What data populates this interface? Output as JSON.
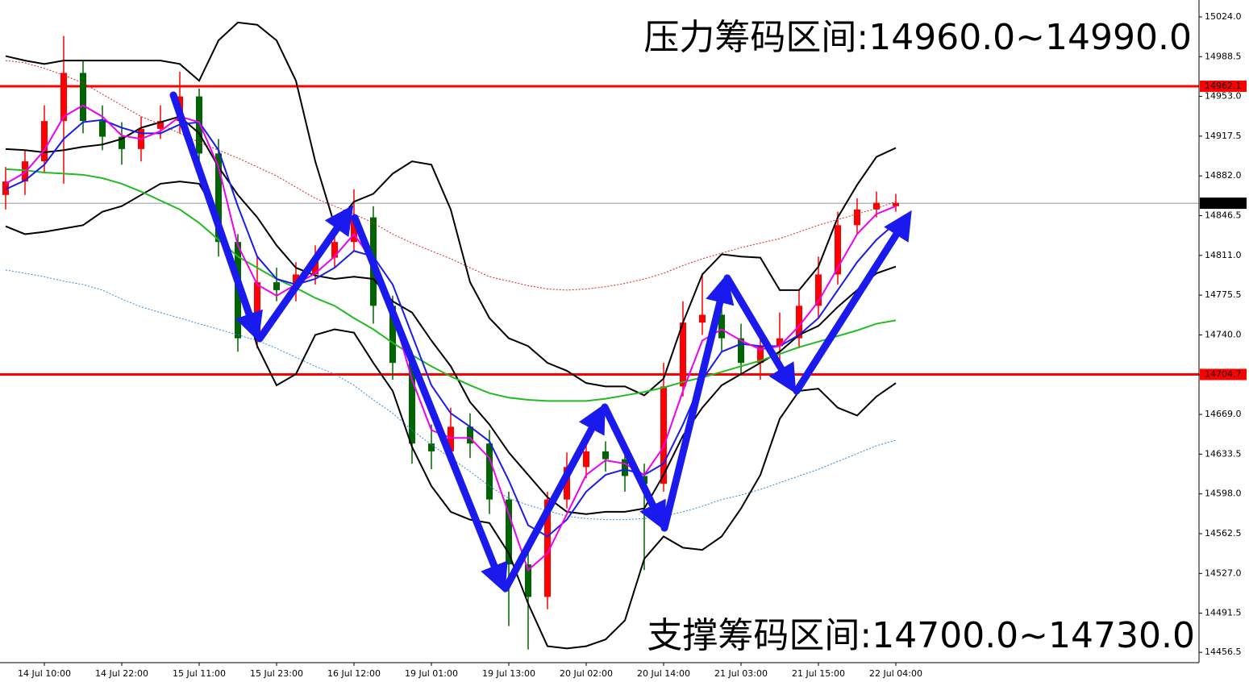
{
  "chart_data": {
    "type": "candlestick",
    "categories": [
      null,
      null,
      "14 Jul 10:00",
      null,
      null,
      null,
      "14 Jul 22:00",
      null,
      null,
      null,
      "15 Jul 11:00",
      null,
      null,
      null,
      "15 Jul 23:00",
      null,
      null,
      null,
      "16 Jul 12:00",
      null,
      null,
      null,
      "19 Jul 01:00",
      null,
      null,
      null,
      "19 Jul 13:00",
      null,
      null,
      null,
      "20 Jul 02:00",
      null,
      null,
      null,
      "20 Jul 14:00",
      null,
      null,
      null,
      "21 Jul 03:00",
      null,
      null,
      null,
      "21 Jul 15:00",
      null,
      null,
      null,
      "22 Jul 04:00"
    ],
    "open": [
      14865,
      14877,
      14895,
      14931,
      14974,
      14931,
      14917,
      14906,
      14924,
      14931,
      14953,
      14902,
      14823,
      14737,
      14787,
      14780,
      14794,
      14809,
      14823,
      14845,
      14766,
      14715,
      14643,
      14636,
      14658,
      14643,
      14593,
      14535,
      14506,
      14593,
      14622,
      14636,
      14629,
      14614,
      14607,
      14694,
      14751,
      14758,
      14737,
      14715,
      14730,
      14737,
      14766,
      14794,
      14838,
      14852,
      14855
    ],
    "high": [
      14890,
      14905,
      14945,
      15007,
      14985,
      14945,
      14930,
      14935,
      14945,
      14975,
      14960,
      14915,
      14830,
      14810,
      14800,
      14805,
      14820,
      14835,
      14870,
      14855,
      14775,
      14725,
      14660,
      14675,
      14670,
      14655,
      14600,
      14550,
      14600,
      14635,
      14650,
      14645,
      14640,
      14625,
      14715,
      14770,
      14795,
      14770,
      14750,
      14745,
      14760,
      14780,
      14810,
      14850,
      14862,
      14868,
      14866
    ],
    "low": [
      14852,
      14865,
      14885,
      14875,
      14920,
      14905,
      14892,
      14895,
      14915,
      14920,
      14890,
      14810,
      14725,
      14728,
      14770,
      14770,
      14785,
      14800,
      14815,
      14750,
      14700,
      14625,
      14620,
      14625,
      14630,
      14580,
      14480,
      14459,
      14495,
      14585,
      14612,
      14618,
      14600,
      14530,
      14600,
      14685,
      14740,
      14725,
      14705,
      14700,
      14700,
      14728,
      14755,
      14785,
      14830,
      14845,
      14850
    ],
    "close": [
      14877,
      14895,
      14931,
      14974,
      14931,
      14917,
      14906,
      14924,
      14931,
      14953,
      14902,
      14823,
      14737,
      14787,
      14780,
      14794,
      14809,
      14823,
      14845,
      14766,
      14715,
      14643,
      14636,
      14658,
      14643,
      14593,
      14535,
      14506,
      14593,
      14622,
      14636,
      14629,
      14614,
      14607,
      14694,
      14751,
      14758,
      14737,
      14715,
      14730,
      14737,
      14766,
      14794,
      14838,
      14852,
      14858,
      14858
    ],
    "up_color": "#ff0000",
    "down_color": "#006400",
    "series": [
      {
        "color": "#000000",
        "style": "solid",
        "values": [
          14989,
          14985,
          14982,
          14985,
          14985,
          14985,
          14985,
          14985,
          14985,
          14982,
          14967,
          15003,
          15019,
          15017,
          15003,
          14967,
          14895,
          14838,
          14859,
          14866,
          14884,
          14895,
          14892,
          14852,
          14787,
          14755,
          14737,
          14730,
          14715,
          14708,
          14697,
          14694,
          14694,
          14686,
          14701,
          14751,
          14794,
          14812,
          14810,
          14809,
          14780,
          14780,
          14801,
          14845,
          14874,
          14899,
          14907
        ]
      },
      {
        "color": "#000000",
        "style": "solid",
        "values": [
          14906,
          14905,
          14903,
          14905,
          14908,
          14910,
          14915,
          14925,
          14930,
          14935,
          14920,
          14890,
          14865,
          14845,
          14820,
          14800,
          14793,
          14790,
          14792,
          14790,
          14770,
          14760,
          14735,
          14712,
          14680,
          14660,
          14635,
          14615,
          14595,
          14582,
          14580,
          14582,
          14582,
          14585,
          14615,
          14650,
          14675,
          14695,
          14705,
          14715,
          14725,
          14740,
          14748,
          14765,
          14780,
          14795,
          14801
        ]
      },
      {
        "color": "#000000",
        "style": "solid",
        "values": [
          14837,
          14830,
          14832,
          14835,
          14838,
          14850,
          14855,
          14865,
          14875,
          14877,
          14875,
          14845,
          14790,
          14730,
          14695,
          14705,
          14740,
          14745,
          14742,
          14715,
          14690,
          14640,
          14605,
          14582,
          14575,
          14572,
          14545,
          14500,
          14462,
          14460,
          14462,
          14468,
          14485,
          14540,
          14560,
          14550,
          14548,
          14560,
          14585,
          14615,
          14665,
          14690,
          14692,
          14675,
          14668,
          14685,
          14697
        ]
      },
      {
        "color": "#22bb22",
        "style": "solid",
        "values": [
          14888,
          14887,
          14885,
          14884,
          14883,
          14880,
          14875,
          14868,
          14860,
          14852,
          14840,
          14825,
          14810,
          14800,
          14790,
          14782,
          14773,
          14766,
          14755,
          14745,
          14733,
          14722,
          14712,
          14703,
          14695,
          14688,
          14684,
          14682,
          14681,
          14681,
          14681,
          14683,
          14686,
          14689,
          14693,
          14698,
          14702,
          14707,
          14712,
          14717,
          14723,
          14729,
          14734,
          14739,
          14744,
          14750,
          14753
        ]
      },
      {
        "color": "#dd2222",
        "style": "dotted",
        "values": [
          14985,
          14983,
          14978,
          14972,
          14965,
          14955,
          14945,
          14935,
          14928,
          14920,
          14912,
          14905,
          14898,
          14890,
          14882,
          14872,
          14862,
          14855,
          14848,
          14840,
          14830,
          14822,
          14815,
          14808,
          14800,
          14792,
          14788,
          14784,
          14781,
          14780,
          14781,
          14783,
          14786,
          14790,
          14795,
          14802,
          14808,
          14813,
          14818,
          14822,
          14826,
          14832,
          14838,
          14843,
          14848,
          14853,
          14859
        ]
      },
      {
        "color": "#2a8adf",
        "style": "dotted",
        "values": [
          14798,
          14795,
          14792,
          14788,
          14785,
          14780,
          14772,
          14765,
          14760,
          14755,
          14750,
          14745,
          14740,
          14735,
          14728,
          14720,
          14712,
          14705,
          14695,
          14682,
          14670,
          14655,
          14642,
          14630,
          14618,
          14605,
          14594,
          14588,
          14583,
          14578,
          14576,
          14575,
          14575,
          14576,
          14578,
          14582,
          14587,
          14593,
          14597,
          14602,
          14608,
          14614,
          14620,
          14627,
          14634,
          14641,
          14646
        ]
      },
      {
        "color": "#1a1aee",
        "style": "solid",
        "values": [
          14870,
          14878,
          14892,
          14915,
          14930,
          14932,
          14925,
          14920,
          14920,
          14928,
          14930,
          14905,
          14855,
          14810,
          14790,
          14785,
          14790,
          14800,
          14815,
          14810,
          14785,
          14740,
          14695,
          14670,
          14658,
          14645,
          14610,
          14570,
          14560,
          14575,
          14600,
          14615,
          14620,
          14615,
          14625,
          14660,
          14700,
          14725,
          14732,
          14730,
          14730,
          14740,
          14755,
          14780,
          14805,
          14825,
          14840
        ]
      },
      {
        "color": "#ee00ee",
        "style": "solid",
        "values": [
          14875,
          14885,
          14905,
          14935,
          14945,
          14935,
          14918,
          14915,
          14922,
          14935,
          14930,
          14890,
          14820,
          14785,
          14775,
          14785,
          14795,
          14810,
          14830,
          14805,
          14760,
          14700,
          14655,
          14648,
          14648,
          14630,
          14580,
          14530,
          14545,
          14580,
          14615,
          14628,
          14625,
          14615,
          14640,
          14690,
          14735,
          14745,
          14735,
          14727,
          14730,
          14748,
          14770,
          14800,
          14830,
          14848,
          14855
        ]
      }
    ],
    "levels": [
      {
        "value": 14962.1,
        "color": "#ff0000"
      },
      {
        "value": 14704.7,
        "color": "#ff0000"
      },
      {
        "value": 14857.6,
        "color": "#8a9aa0"
      }
    ],
    "annotations": [
      "压力筹码区间:14960.0~14990.0",
      "支撑筹码区间:14700.0~14730.0"
    ],
    "ylim": [
      14447.3,
      15039.1
    ],
    "yticks": [
      {
        "value": 15024.0,
        "label": "15024.0"
      },
      {
        "value": 14988.5,
        "label": "14988.5"
      },
      {
        "value": 14953.0,
        "label": "14953.0"
      },
      {
        "value": 14917.5,
        "label": "14917.5"
      },
      {
        "value": 14882.0,
        "label": "14882.0"
      },
      {
        "value": 14846.5,
        "label": "14846.5"
      },
      {
        "value": 14811.0,
        "label": "14811.0"
      },
      {
        "value": 14775.5,
        "label": "14775.5"
      },
      {
        "value": 14740.0,
        "label": "14740.0"
      },
      {
        "value": 14704.5,
        "label": "14704.5"
      },
      {
        "value": 14669.0,
        "label": "14669.0"
      },
      {
        "value": 14633.5,
        "label": "14633.5"
      },
      {
        "value": 14598.0,
        "label": "14598.0"
      },
      {
        "value": 14562.5,
        "label": "14562.5"
      },
      {
        "value": 14527.0,
        "label": "14527.0"
      },
      {
        "value": 14491.5,
        "label": "14491.5"
      },
      {
        "value": 14456.5,
        "label": "14456.5"
      }
    ]
  }
}
